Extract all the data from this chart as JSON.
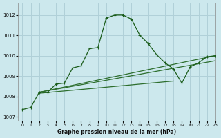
{
  "title": "Graphe pression niveau de la mer (hPa)",
  "bg_color": "#cce8ed",
  "grid_color": "#b0d0d8",
  "line_color_main": "#1a5c1a",
  "line_color_secondary": "#2d6e2d",
  "xlim": [
    -0.5,
    23
  ],
  "ylim": [
    1006.8,
    1012.6
  ],
  "yticks": [
    1007,
    1008,
    1009,
    1010,
    1011,
    1012
  ],
  "xticks": [
    0,
    1,
    2,
    3,
    4,
    5,
    6,
    7,
    8,
    9,
    10,
    11,
    12,
    13,
    14,
    15,
    16,
    17,
    18,
    19,
    20,
    21,
    22,
    23
  ],
  "hours": [
    0,
    1,
    2,
    3,
    4,
    5,
    6,
    7,
    8,
    9,
    10,
    11,
    12,
    13,
    14,
    15,
    16,
    17,
    18,
    19,
    20,
    21,
    22,
    23
  ],
  "series_main": [
    1007.35,
    1007.45,
    1008.2,
    1008.2,
    1008.6,
    1008.65,
    1009.4,
    1009.5,
    1010.35,
    1010.4,
    1011.85,
    1012.0,
    1012.0,
    1011.8,
    1011.0,
    1010.6,
    1010.05,
    1009.65,
    1009.35,
    1008.65,
    1009.45,
    1009.65,
    1009.95,
    1010.0
  ],
  "series_line1": [
    [
      2,
      1008.2
    ],
    [
      23,
      1010.0
    ]
  ],
  "series_line2": [
    [
      2,
      1008.2
    ],
    [
      23,
      1009.75
    ]
  ],
  "series_line3": [
    [
      2,
      1008.15
    ],
    [
      18,
      1008.75
    ]
  ],
  "marker_hours_main": [
    0,
    1,
    2,
    3,
    4,
    5,
    6,
    7,
    8,
    9,
    10,
    11,
    12,
    13,
    14,
    15,
    16,
    17,
    18,
    19,
    20,
    21,
    22,
    23
  ]
}
